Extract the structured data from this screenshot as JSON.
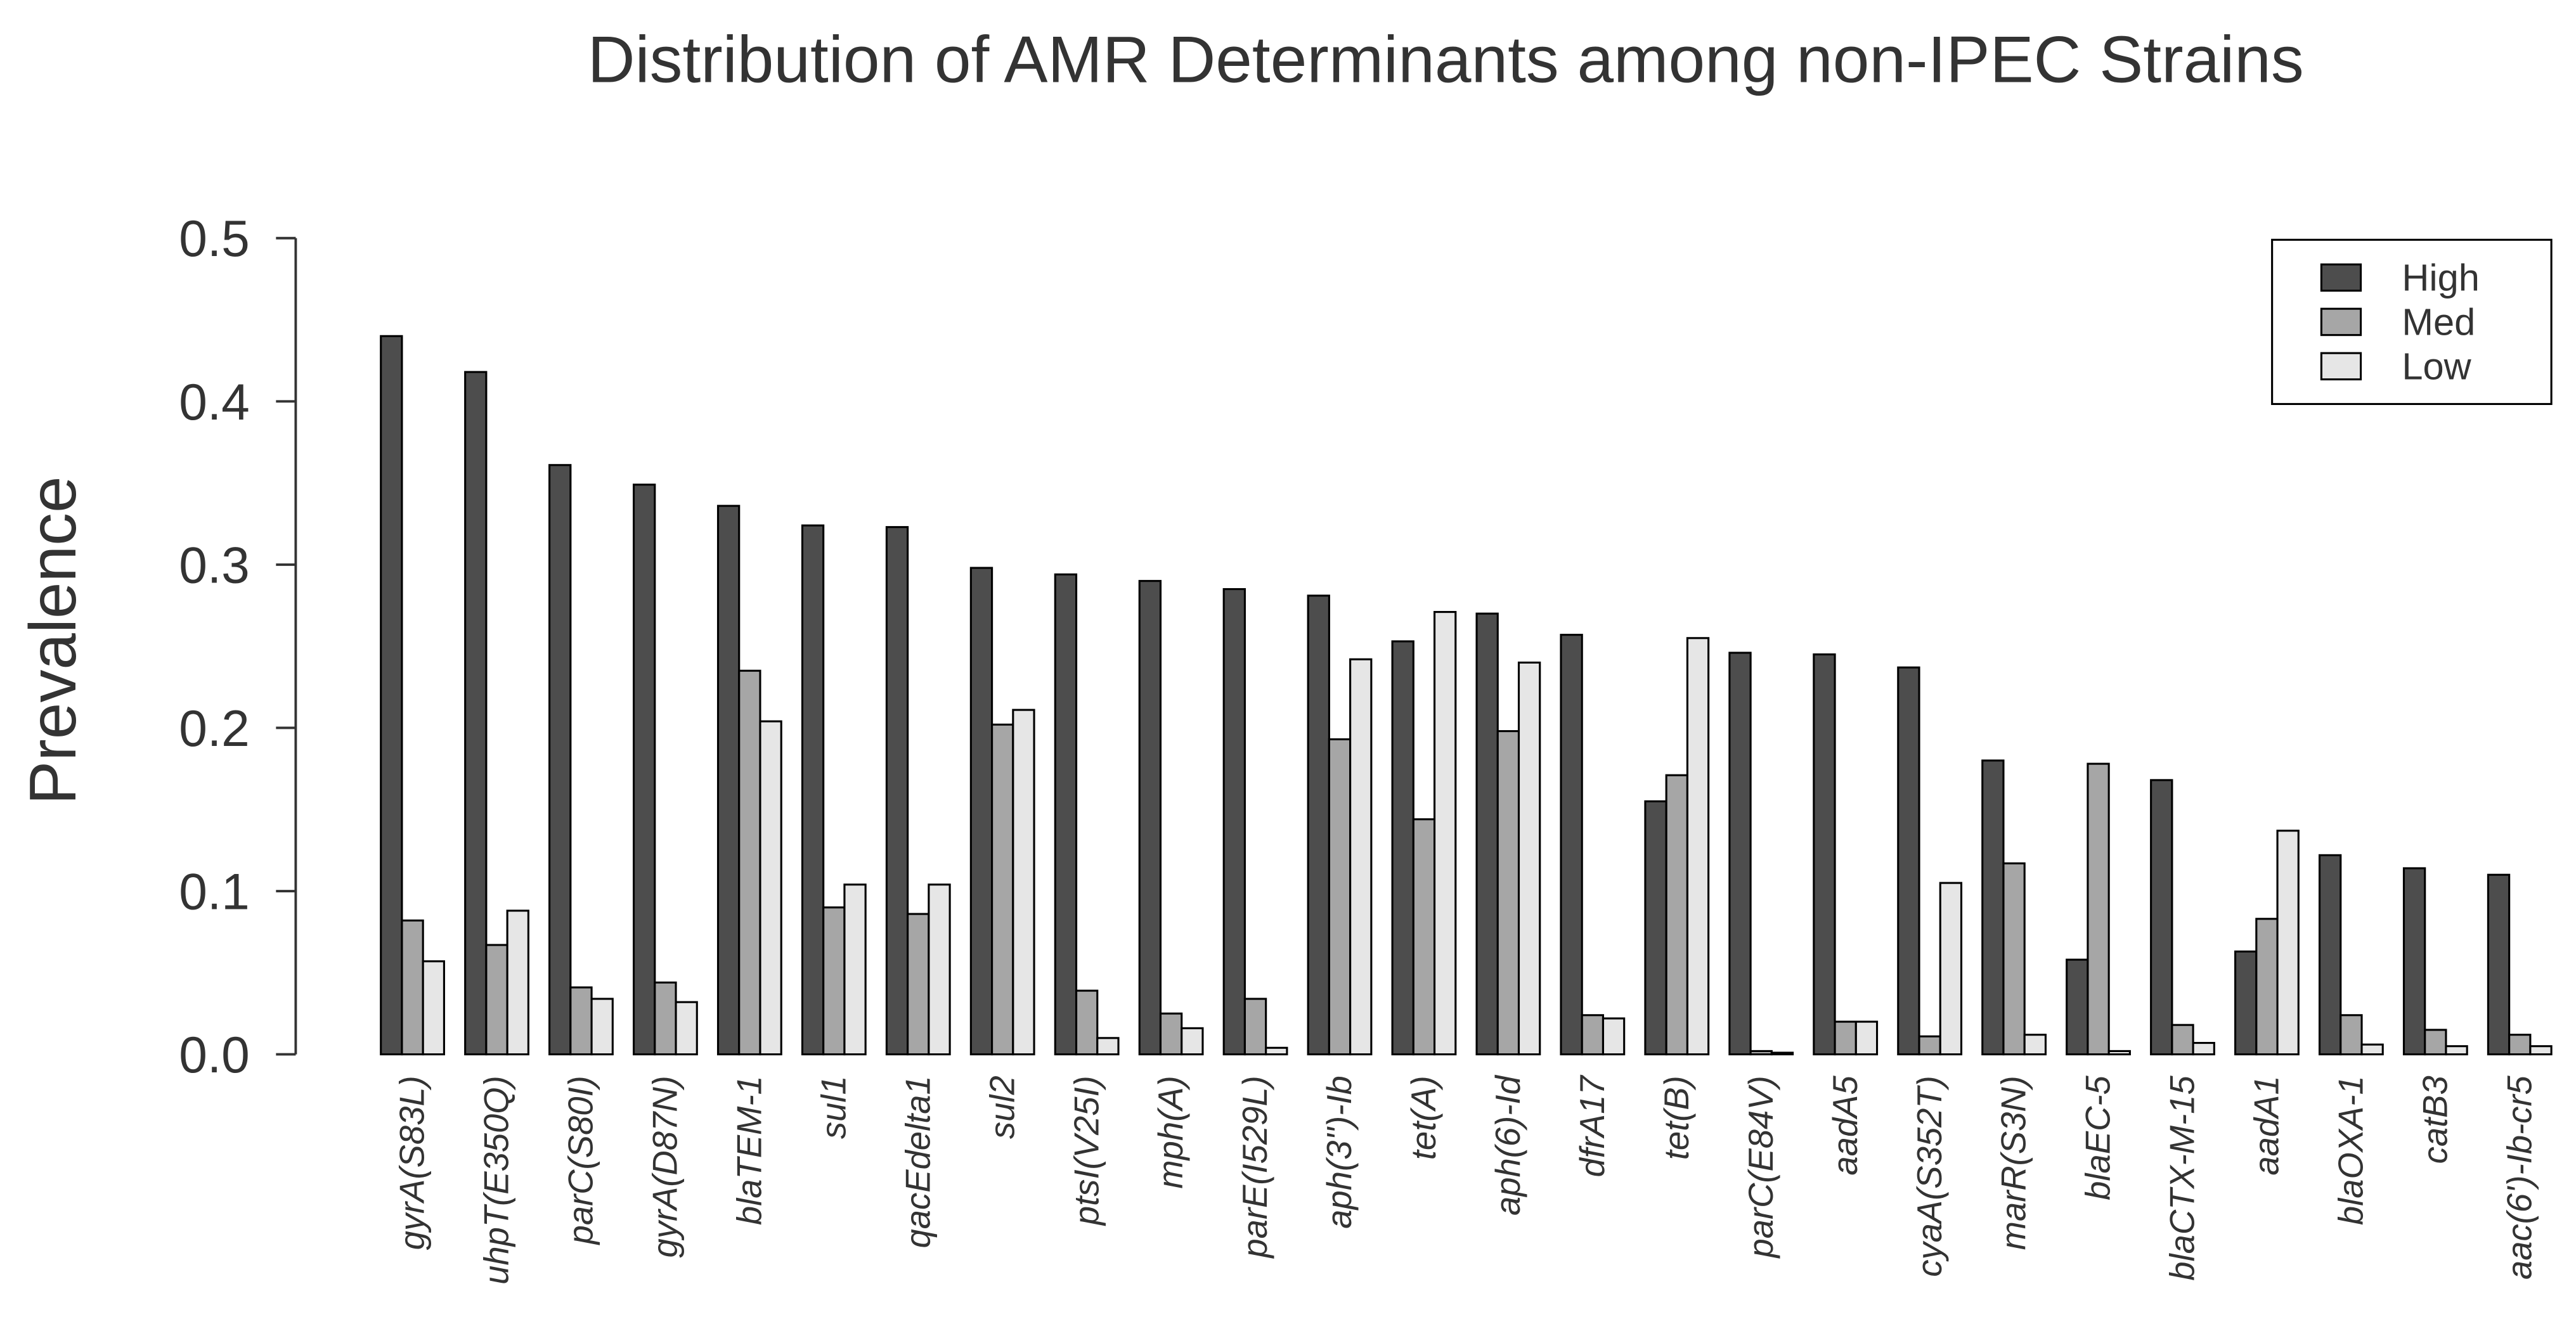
{
  "chart_data": {
    "type": "bar",
    "title": "Distribution of AMR Determinants among non-IPEC Strains",
    "y_label": "Prevalence",
    "categories": [
      "gyrA(S83L)",
      "uhpT(E350Q)",
      "parC(S80I)",
      "gyrA(D87N)",
      "blaTEM-1",
      "sul1",
      "qacEdelta1",
      "sul2",
      "ptsI(V25I)",
      "mph(A)",
      "parE(I529L)",
      "aph(3'')-Ib",
      "tet(A)",
      "aph(6)-Id",
      "dfrA17",
      "tet(B)",
      "parC(E84V)",
      "aadA5",
      "cyaA(S352T)",
      "marR(S3N)",
      "blaEC-5",
      "blaCTX-M-15",
      "aadA1",
      "blaOXA-1",
      "catB3",
      "aac(6')-Ib-cr5"
    ],
    "series": [
      {
        "name": "High",
        "color": "#4d4d4d",
        "values": [
          0.44,
          0.418,
          0.361,
          0.349,
          0.336,
          0.324,
          0.323,
          0.298,
          0.294,
          0.29,
          0.285,
          0.281,
          0.253,
          0.27,
          0.257,
          0.155,
          0.246,
          0.245,
          0.237,
          0.18,
          0.058,
          0.168,
          0.063,
          0.122,
          0.114,
          0.11
        ]
      },
      {
        "name": "Med",
        "color": "#a6a6a6",
        "values": [
          0.082,
          0.067,
          0.041,
          0.044,
          0.235,
          0.09,
          0.086,
          0.202,
          0.039,
          0.025,
          0.034,
          0.193,
          0.144,
          0.198,
          0.024,
          0.171,
          0.002,
          0.02,
          0.011,
          0.117,
          0.178,
          0.018,
          0.083,
          0.024,
          0.015,
          0.012
        ]
      },
      {
        "name": "Low",
        "color": "#e6e6e6",
        "values": [
          0.057,
          0.088,
          0.034,
          0.032,
          0.204,
          0.104,
          0.104,
          0.211,
          0.01,
          0.016,
          0.004,
          0.242,
          0.271,
          0.24,
          0.022,
          0.255,
          0.001,
          0.02,
          0.105,
          0.012,
          0.002,
          0.007,
          0.137,
          0.006,
          0.005,
          0.005
        ]
      }
    ],
    "ylim": [
      0,
      0.5
    ],
    "yticks": [
      {
        "value": 0,
        "label": "0.0"
      },
      0.1,
      0.2,
      0.3,
      0.4,
      0.5
    ],
    "legend": "top-right"
  }
}
